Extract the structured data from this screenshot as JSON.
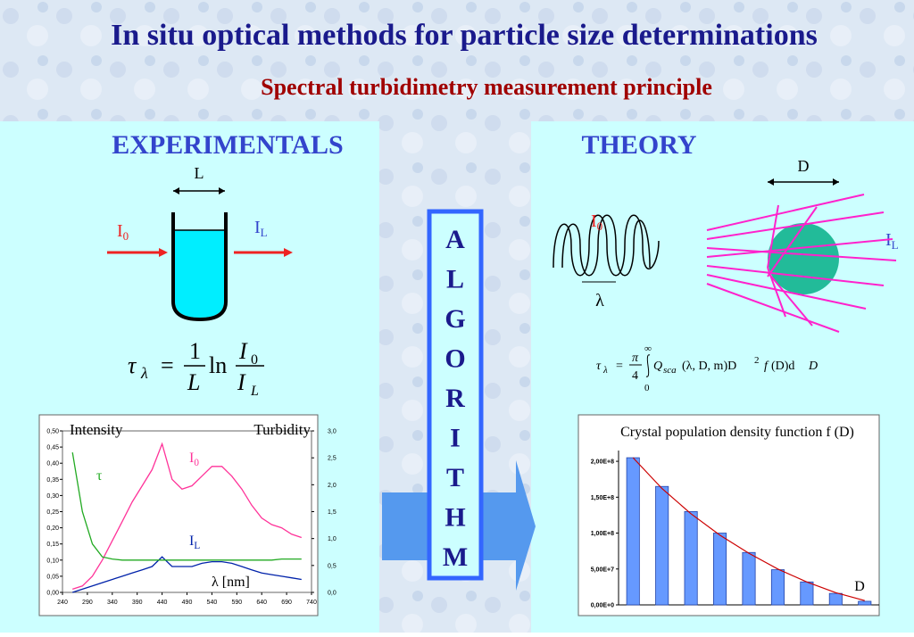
{
  "title": "In situ optical methods for particle size determinations",
  "subtitle": "Spectral turbidimetry measurement principle",
  "experimentals": {
    "heading": "EXPERIMENTALS",
    "length_label": "L",
    "incident": {
      "main": "I",
      "sub": "0"
    },
    "transmitted": {
      "main": "I",
      "sub": "L"
    },
    "formula": [
      "τ",
      "λ",
      "=",
      "1",
      "L",
      "ln",
      "I",
      "0",
      "I",
      "L"
    ]
  },
  "algorithm": [
    "A",
    "L",
    "G",
    "O",
    "R",
    "I",
    "T",
    "H",
    "M"
  ],
  "theory": {
    "heading": "THEORY",
    "diameter_label": "D",
    "incident": {
      "main": "I",
      "sub": "0"
    },
    "transmitted": {
      "main": "I",
      "sub": "L"
    },
    "wavelength_label": "λ",
    "formula": [
      "τ",
      "λ",
      "=",
      "π",
      "4",
      "∞",
      "0",
      "Q",
      "sca",
      "(λ, D, m)D",
      "2",
      "f",
      "(D)d",
      "D"
    ]
  },
  "chart_data": [
    {
      "type": "line",
      "label_left": "Intensity",
      "label_right": "Turbidity",
      "xlabel": "λ [nm]",
      "x": [
        260,
        280,
        300,
        320,
        340,
        360,
        380,
        400,
        420,
        440,
        460,
        480,
        500,
        520,
        540,
        560,
        580,
        600,
        620,
        640,
        660,
        680,
        700,
        720
      ],
      "xlim": [
        240,
        740
      ],
      "xticks": [
        240,
        290,
        340,
        390,
        440,
        490,
        540,
        590,
        640,
        690,
        740
      ],
      "ylim": [
        0,
        0.5
      ],
      "yticks": [
        {
          "value": 0,
          "label": "0,00"
        },
        {
          "value": 0.05,
          "label": "0,05"
        },
        {
          "value": 0.1,
          "label": "0,10"
        },
        {
          "value": 0.15,
          "label": "0,15"
        },
        {
          "value": 0.2,
          "label": "0,20"
        },
        {
          "value": 0.25,
          "label": "0,25"
        },
        {
          "value": 0.3,
          "label": "0,30"
        },
        {
          "value": 0.35,
          "label": "0,35"
        },
        {
          "value": 0.4,
          "label": "0,40"
        },
        {
          "value": 0.45,
          "label": "0,45"
        },
        {
          "value": 0.5,
          "label": "0,50"
        }
      ],
      "y2lim": [
        0,
        3
      ],
      "y2ticks": [
        {
          "value": 0,
          "label": "0,0"
        },
        {
          "value": 0.5,
          "label": "0,5"
        },
        {
          "value": 1,
          "label": "1,0"
        },
        {
          "value": 1.5,
          "label": "1,5"
        },
        {
          "value": 2,
          "label": "2,0"
        },
        {
          "value": 2.5,
          "label": "2,5"
        },
        {
          "value": 3,
          "label": "3,0"
        }
      ],
      "series": [
        {
          "name": "I",
          "name_sub": "0",
          "color": "#ff3399",
          "values": [
            0.01,
            0.02,
            0.05,
            0.1,
            0.16,
            0.22,
            0.28,
            0.33,
            0.38,
            0.46,
            0.35,
            0.32,
            0.33,
            0.36,
            0.39,
            0.39,
            0.36,
            0.32,
            0.27,
            0.23,
            0.21,
            0.2,
            0.18,
            0.17
          ]
        },
        {
          "name": "I",
          "name_sub": "L",
          "color": "#0022aa",
          "values": [
            0,
            0.01,
            0.02,
            0.03,
            0.04,
            0.05,
            0.06,
            0.07,
            0.08,
            0.11,
            0.08,
            0.08,
            0.08,
            0.09,
            0.095,
            0.095,
            0.09,
            0.08,
            0.07,
            0.06,
            0.055,
            0.05,
            0.045,
            0.04
          ]
        },
        {
          "name": "τ",
          "color": "#22aa22",
          "axis": "y2",
          "values": [
            2.6,
            1.5,
            0.9,
            0.66,
            0.62,
            0.6,
            0.6,
            0.6,
            0.6,
            0.6,
            0.6,
            0.6,
            0.6,
            0.6,
            0.6,
            0.6,
            0.6,
            0.6,
            0.6,
            0.6,
            0.6,
            0.62,
            0.62,
            0.62
          ]
        }
      ]
    },
    {
      "type": "bar",
      "title": "Crystal population density function f (D)",
      "xlabel": "D",
      "categories": [
        null,
        null,
        null,
        null,
        null,
        null,
        null,
        null,
        null
      ],
      "values": [
        205000000,
        165000000,
        130000000,
        100000000,
        73000000,
        49000000,
        32000000,
        16000000,
        5000000
      ],
      "color": "#6699ff",
      "ylim": [
        0,
        215000000
      ],
      "yticks": [
        {
          "value": 0,
          "label": "0,00E+0"
        },
        {
          "value": 50000000,
          "label": "5,00E+7"
        },
        {
          "value": 100000000,
          "label": "1,00E+8"
        },
        {
          "value": 150000000,
          "label": "1,50E+8"
        },
        {
          "value": 200000000,
          "label": "2,00E+8"
        }
      ],
      "fit": {
        "color": "#cc0000",
        "values": [
          205000000,
          162000000,
          127000000,
          97000000,
          72000000,
          50000000,
          32000000,
          17000000,
          6000000
        ]
      }
    }
  ]
}
